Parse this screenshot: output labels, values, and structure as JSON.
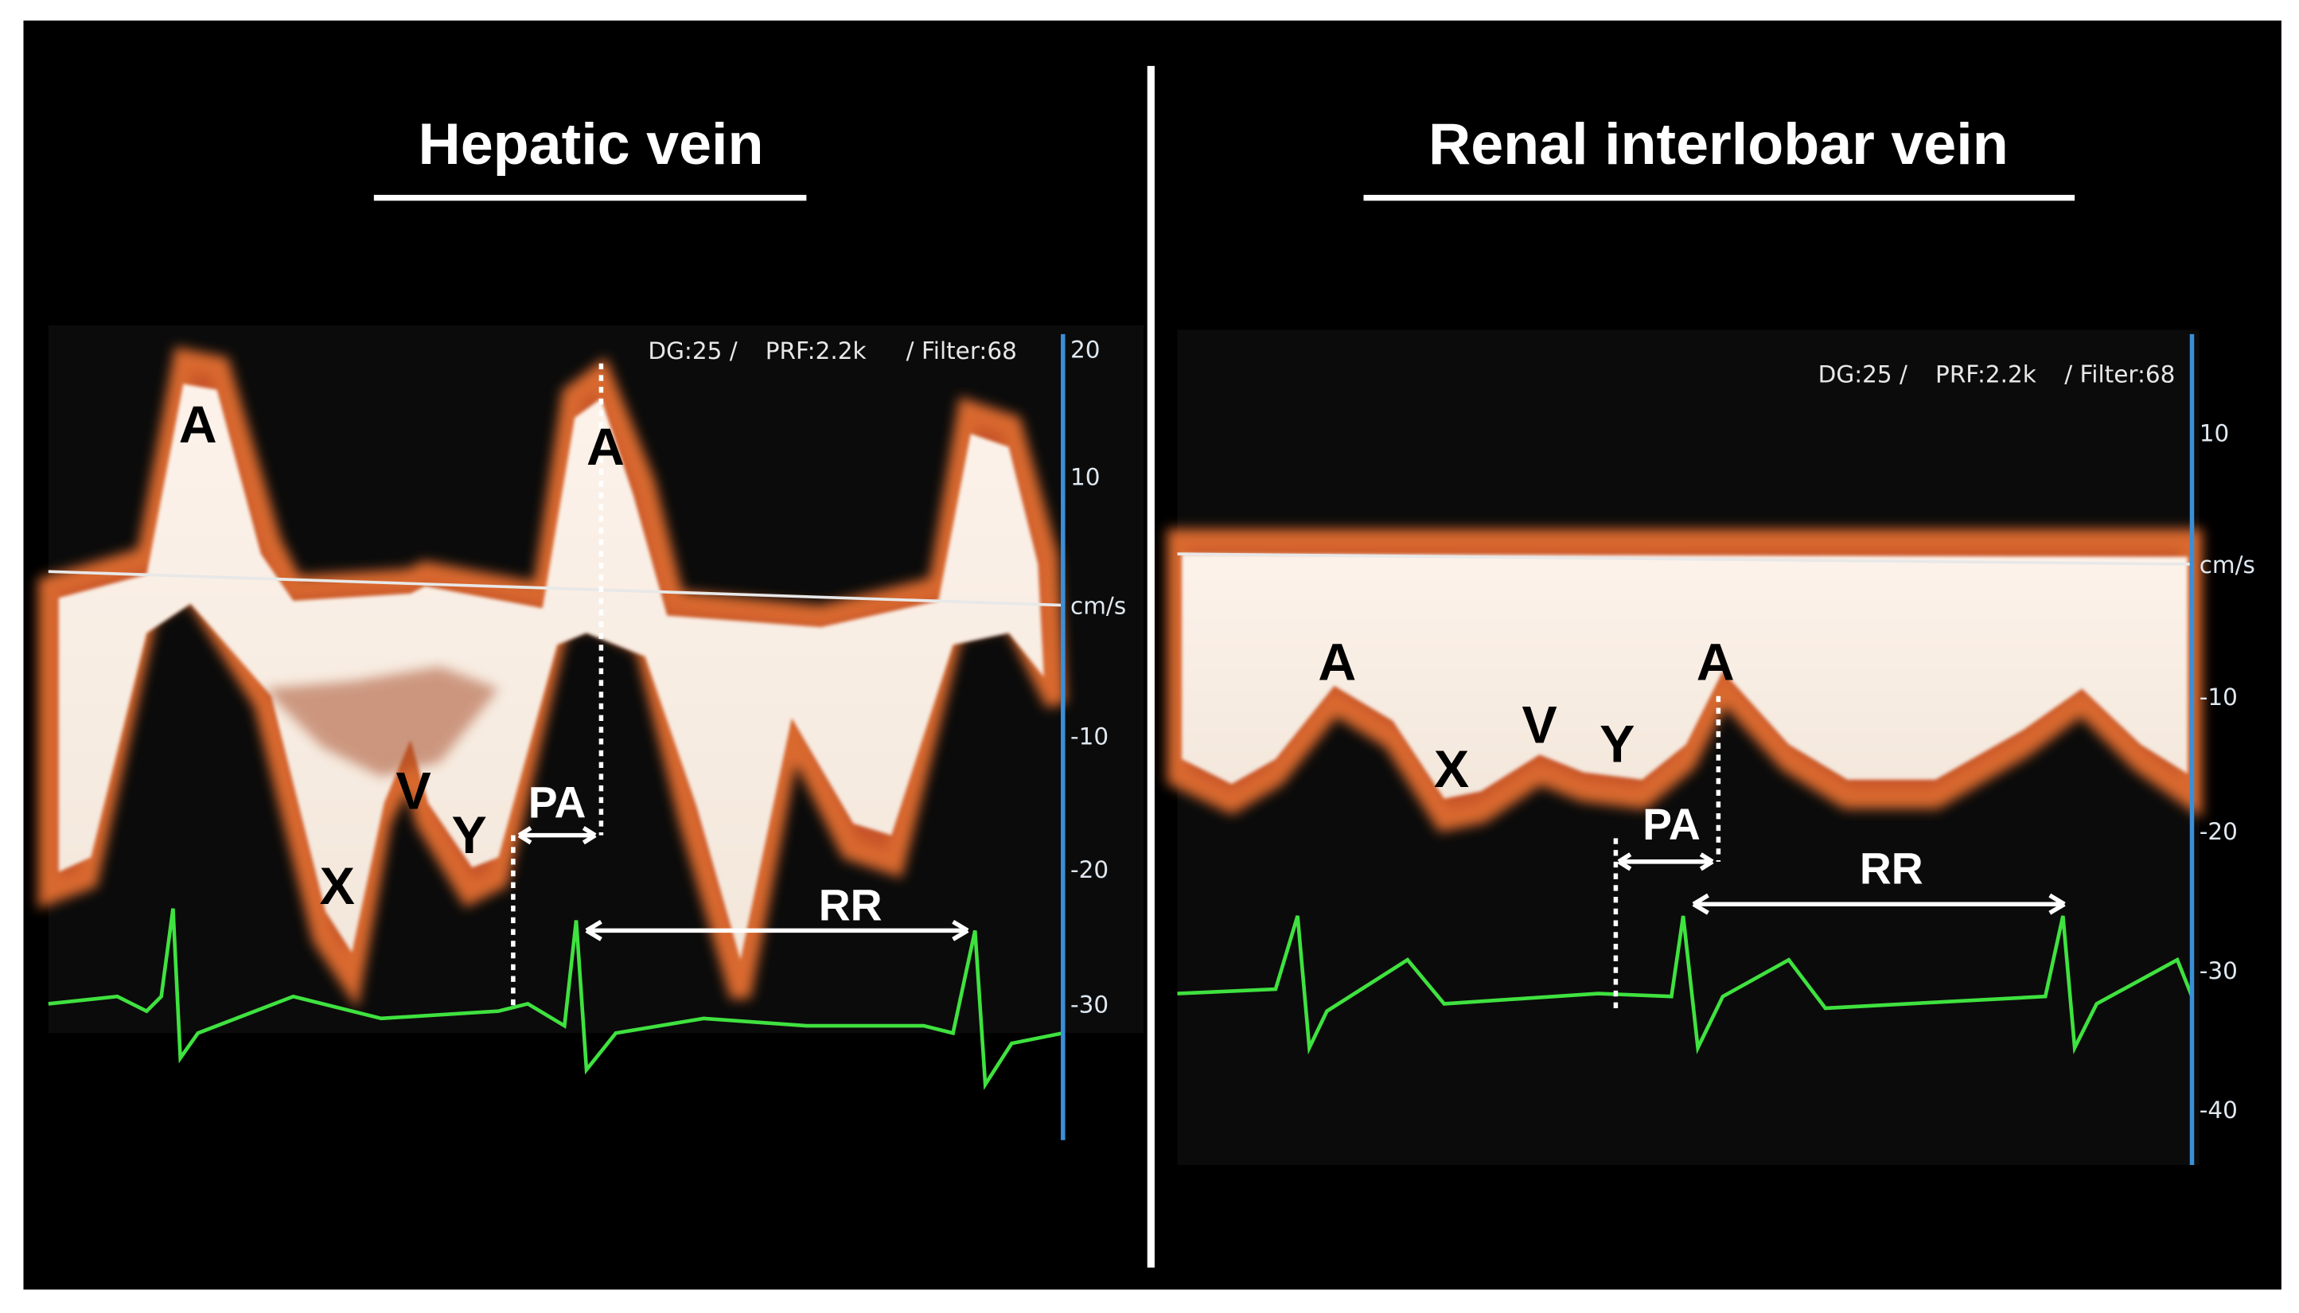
{
  "panels": [
    {
      "title": "Hepatic vein",
      "settings": [
        "DG:25 /",
        "PRF:2.2k",
        "/ Filter:68"
      ],
      "scale_labels": [
        "20",
        "10",
        "cm/s",
        "-10",
        "-20",
        "-30"
      ],
      "annotations": [
        "A",
        "A",
        "X",
        "V",
        "Y",
        "PA",
        "RR"
      ]
    },
    {
      "title": "Renal interlobar vein",
      "settings": [
        "DG:25 /",
        "PRF:2.2k",
        "/ Filter:68"
      ],
      "scale_labels": [
        "10",
        "cm/s",
        "-10",
        "-20",
        "-30",
        "-40"
      ],
      "annotations": [
        "A",
        "X",
        "V",
        "Y",
        "A",
        "PA",
        "RR"
      ]
    }
  ]
}
